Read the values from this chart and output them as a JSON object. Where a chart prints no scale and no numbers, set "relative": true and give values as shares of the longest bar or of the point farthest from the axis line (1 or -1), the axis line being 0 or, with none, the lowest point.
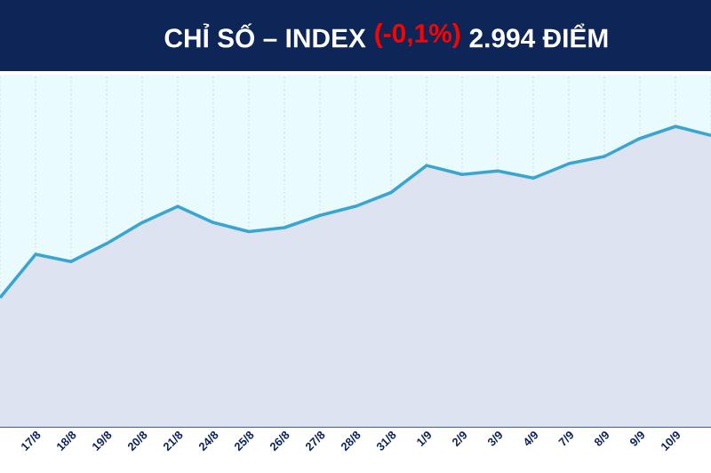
{
  "chart_data": {
    "type": "area",
    "title": "CHỈ SỐ – INDEX",
    "annotations": [
      "(-0,1%)",
      "2.994 ĐIỂM"
    ],
    "categories": [
      null,
      "17/8",
      "18/8",
      "19/8",
      "20/8",
      "21/8",
      "24/8",
      "25/8",
      "26/8",
      "27/8",
      "28/8",
      "31/8",
      "1/9",
      "2/9",
      "3/9",
      "4/9",
      "7/9",
      "8/9",
      "9/9",
      "10/9",
      null
    ],
    "values": [
      0.43,
      0.574,
      0.55,
      0.61,
      0.68,
      0.734,
      0.68,
      0.65,
      0.663,
      0.704,
      0.734,
      0.78,
      0.87,
      0.84,
      0.852,
      0.828,
      0.876,
      0.9,
      0.96,
      1,
      0.97
    ],
    "color": "#3aa6d0",
    "relative": true,
    "grid": "x",
    "marker": "none",
    "line_style": "solid",
    "tick_labels": "x"
  }
}
